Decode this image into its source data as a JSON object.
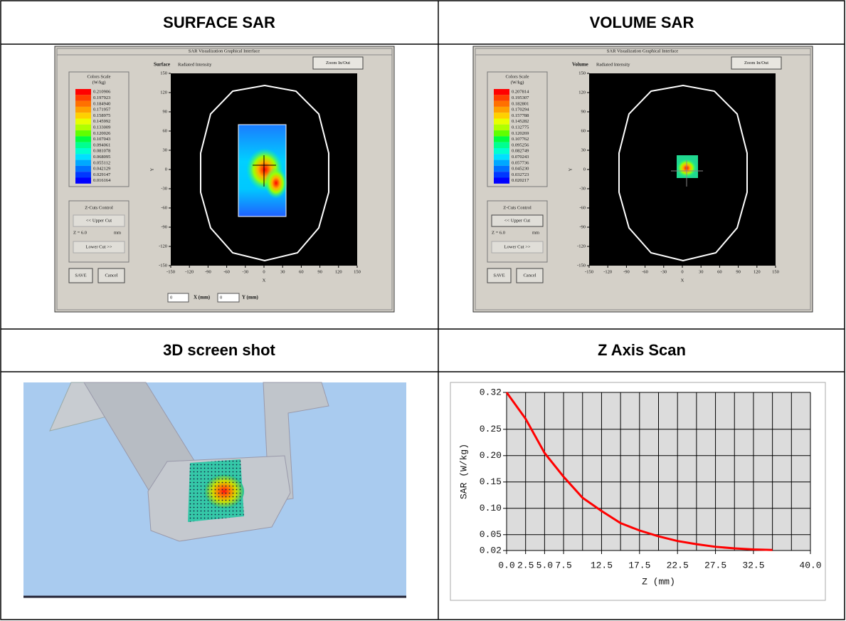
{
  "table": {
    "headers": [
      "SURFACE SAR",
      "VOLUME SAR",
      "3D screen shot",
      "Z Axis Scan"
    ]
  },
  "surface_sar": {
    "window_title": "SAR Visualization Graphical Interface",
    "mode": "Surface",
    "subtitle": "Radiated Intensity",
    "zoom_button": "Zoom In/Out",
    "color_scale_title": "Colors Scale",
    "color_scale_unit": "(W/kg)",
    "color_scale_values": [
      "0.210906",
      "0.197923",
      "0.184940",
      "0.171957",
      "0.158975",
      "0.145992",
      "0.133009",
      "0.120026",
      "0.107043",
      "0.094061",
      "0.081078",
      "0.068095",
      "0.055112",
      "0.042129",
      "0.029147",
      "0.016164"
    ],
    "zcuts_title": "Z-Cuts Control",
    "upper_cut": "<< Upper Cut",
    "z_label": "Z = 6.0",
    "z_unit": "mm",
    "lower_cut": "Lower Cut >>",
    "save": "SAVE",
    "cancel": "Cancel",
    "x_ticks": [
      -150,
      -120,
      -90,
      -60,
      -30,
      0,
      30,
      60,
      90,
      120,
      150
    ],
    "y_ticks": [
      -150,
      -120,
      -90,
      -60,
      -30,
      0,
      30,
      60,
      90,
      120,
      150
    ],
    "x_label": "X",
    "y_label": "Y",
    "x_input": "0",
    "x_input_label": "X (mm)",
    "y_input": "0",
    "y_input_label": "Y (mm)"
  },
  "volume_sar": {
    "window_title": "SAR Visualization Graphical Interface",
    "mode": "Volume",
    "subtitle": "Radiated Intensity",
    "zoom_button": "Zoom In/Out",
    "color_scale_title": "Colors Scale",
    "color_scale_unit": "(W/kg)",
    "color_scale_values": [
      "0.207814",
      "0.195307",
      "0.182801",
      "0.170294",
      "0.157788",
      "0.145282",
      "0.132775",
      "0.120269",
      "0.107762",
      "0.095256",
      "0.082749",
      "0.070243",
      "0.057736",
      "0.045230",
      "0.032723",
      "0.020217"
    ],
    "zcuts_title": "Z-Cuts Control",
    "upper_cut": "<< Upper Cut",
    "z_label": "Z = 6.0",
    "z_unit": "mm",
    "lower_cut": "Lower Cut >>",
    "save": "SAVE",
    "cancel": "Cancel",
    "x_ticks": [
      -150,
      -120,
      -90,
      -60,
      -30,
      0,
      30,
      60,
      90,
      120,
      150
    ],
    "y_ticks": [
      -150,
      -120,
      -90,
      -60,
      -30,
      0,
      30,
      60,
      90,
      120,
      150
    ],
    "x_label": "X",
    "y_label": "Y"
  },
  "z_axis_scan": {
    "type": "line",
    "x_label": "Z (mm)",
    "y_label": "SAR (W/kg)",
    "x": [
      0,
      2.5,
      5,
      7.5,
      10,
      12.5,
      15,
      17.5,
      20,
      22.5,
      25,
      27.5,
      30,
      32.5,
      35
    ],
    "values": [
      0.32,
      0.27,
      0.205,
      0.16,
      0.12,
      0.095,
      0.072,
      0.058,
      0.047,
      0.038,
      0.032,
      0.027,
      0.024,
      0.022,
      0.021
    ],
    "color": "#ff0000",
    "xlim": [
      0,
      40
    ],
    "ylim": [
      0.02,
      0.32
    ],
    "xticks": [
      {
        "value": 0,
        "label": "0.0"
      },
      2.5,
      {
        "value": 5,
        "label": "5.0"
      },
      7.5,
      12.5,
      17.5,
      22.5,
      27.5,
      32.5,
      {
        "value": 40,
        "label": "40.0"
      }
    ],
    "yticks": [
      0.32,
      0.25,
      {
        "value": 0.2,
        "label": "0.20"
      },
      0.15,
      {
        "value": 0.1,
        "label": "0.10"
      },
      0.05,
      0.02
    ],
    "xgrid": [
      0,
      2.5,
      5,
      7.5,
      10,
      12.5,
      15,
      17.5,
      20,
      22.5,
      25,
      27.5,
      30,
      32.5,
      35,
      37.5,
      40
    ],
    "grid": true
  }
}
